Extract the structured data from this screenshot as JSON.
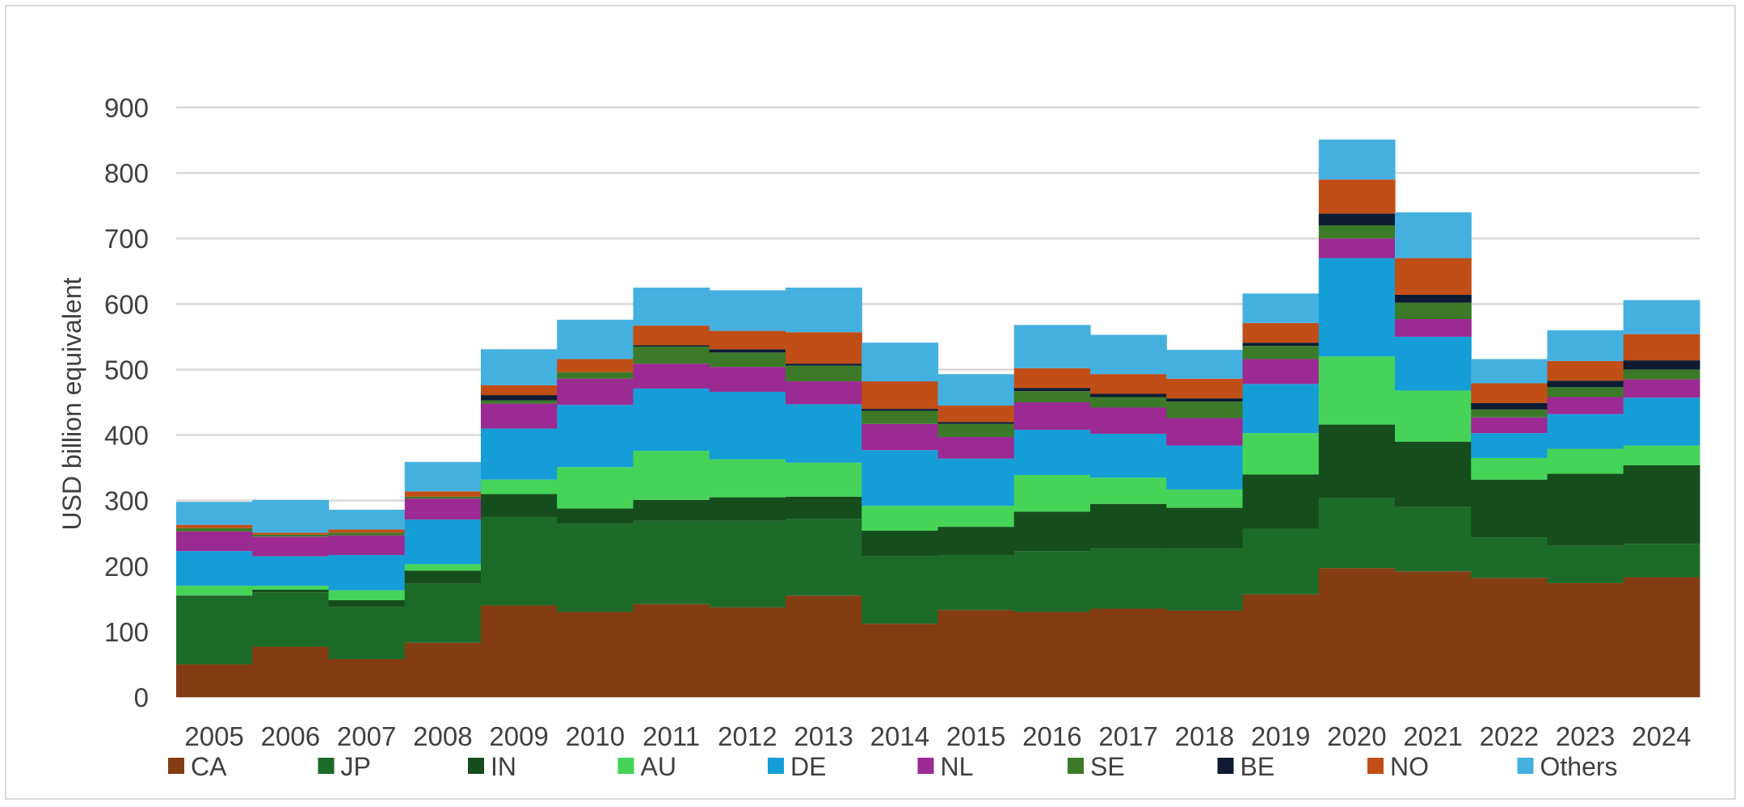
{
  "chart_data": {
    "type": "bar",
    "stacked": true,
    "title": "",
    "xlabel": "",
    "ylabel": "USD billion equivalent",
    "ylim": [
      0,
      900
    ],
    "yticks": [
      0,
      100,
      200,
      300,
      400,
      500,
      600,
      700,
      800,
      900
    ],
    "grid": "horizontal",
    "legend_position": "bottom",
    "categories": [
      "2005",
      "2006",
      "2007",
      "2008",
      "2009",
      "2010",
      "2011",
      "2012",
      "2013",
      "2014",
      "2015",
      "2016",
      "2017",
      "2018",
      "2019",
      "2020",
      "2021",
      "2022",
      "2023",
      "2024"
    ],
    "series": [
      {
        "name": "CA",
        "color": "#843c12",
        "values": [
          50,
          77,
          58,
          83,
          140,
          130,
          142,
          137,
          155,
          112,
          133,
          130,
          135,
          132,
          157,
          197,
          192,
          182,
          174,
          183
        ]
      },
      {
        "name": "JP",
        "color": "#1d6b28",
        "values": [
          103,
          83,
          80,
          90,
          135,
          135,
          127,
          132,
          117,
          103,
          84,
          93,
          92,
          95,
          100,
          107,
          98,
          62,
          57,
          51
        ]
      },
      {
        "name": "IN",
        "color": "#154e1c",
        "values": [
          2,
          4,
          10,
          20,
          35,
          23,
          32,
          36,
          34,
          39,
          43,
          60,
          68,
          62,
          83,
          112,
          100,
          88,
          110,
          120
        ]
      },
      {
        "name": "AU",
        "color": "#45d458",
        "values": [
          15,
          6,
          15,
          10,
          22,
          63,
          75,
          58,
          52,
          38,
          32,
          56,
          40,
          28,
          63,
          104,
          78,
          33,
          38,
          30
        ]
      },
      {
        "name": "DE",
        "color": "#159dd8",
        "values": [
          53,
          45,
          54,
          68,
          78,
          95,
          95,
          103,
          89,
          85,
          72,
          69,
          67,
          67,
          75,
          150,
          82,
          38,
          53,
          73
        ]
      },
      {
        "name": "NL",
        "color": "#9c2a93",
        "values": [
          30,
          30,
          30,
          32,
          38,
          40,
          38,
          38,
          35,
          40,
          33,
          42,
          40,
          42,
          38,
          30,
          27,
          24,
          26,
          28
        ]
      },
      {
        "name": "SE",
        "color": "#3c7a2a",
        "values": [
          5,
          3,
          4,
          3,
          5,
          10,
          26,
          22,
          24,
          20,
          20,
          17,
          16,
          25,
          20,
          20,
          25,
          12,
          15,
          15
        ]
      },
      {
        "name": "BE",
        "color": "#0d1c33",
        "values": [
          0,
          0,
          0,
          0,
          8,
          0,
          2,
          5,
          3,
          3,
          3,
          5,
          5,
          5,
          5,
          18,
          12,
          10,
          10,
          14
        ]
      },
      {
        "name": "NO",
        "color": "#c14e16",
        "values": [
          5,
          3,
          5,
          8,
          15,
          20,
          30,
          28,
          48,
          42,
          25,
          30,
          30,
          30,
          30,
          52,
          56,
          30,
          30,
          40
        ]
      },
      {
        "name": "Others",
        "color": "#44b0e0",
        "values": [
          35,
          50,
          30,
          45,
          55,
          60,
          58,
          62,
          68,
          59,
          48,
          66,
          60,
          44,
          45,
          61,
          70,
          37,
          47,
          52
        ]
      }
    ]
  }
}
